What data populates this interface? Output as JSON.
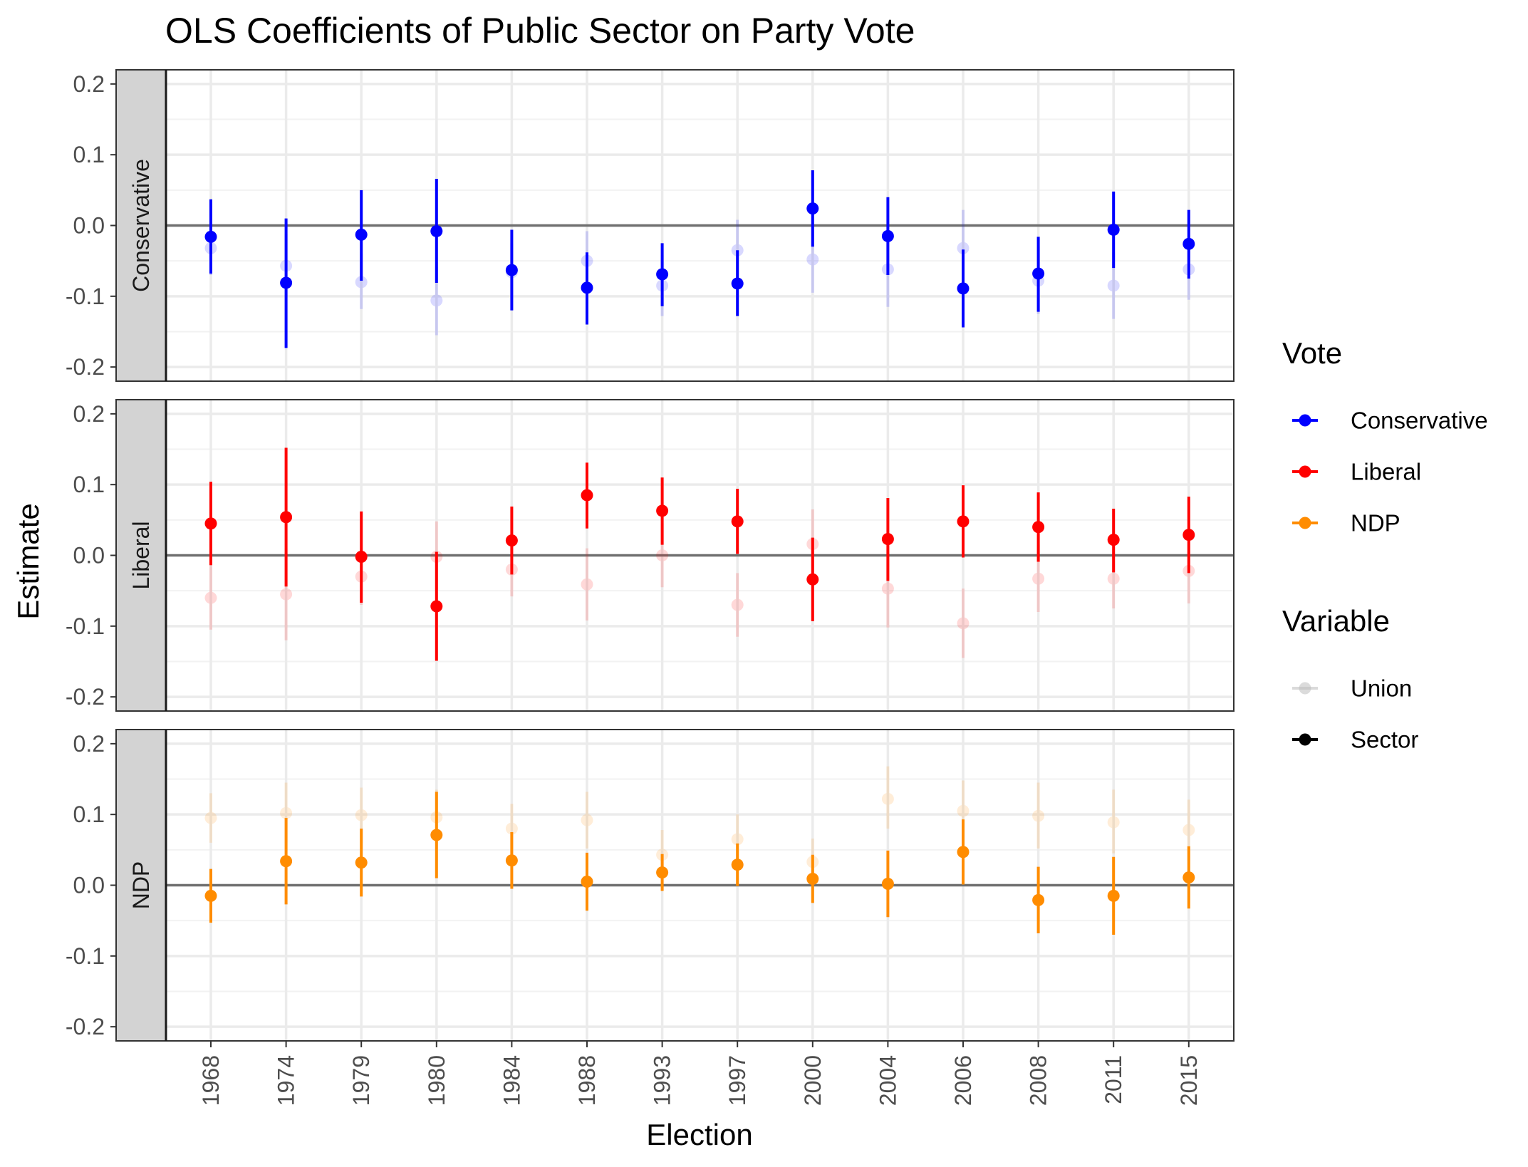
{
  "chart_data": {
    "type": "scatter",
    "title": "OLS Coefficients of Public Sector on Party Vote",
    "xlabel": "Election",
    "ylabel": "Estimate",
    "ylim": [
      -0.22,
      0.22
    ],
    "yticks": [
      -0.2,
      -0.1,
      0.0,
      0.1,
      0.2
    ],
    "ytick_labels": [
      "-0.2",
      "-0.1",
      "0.0",
      "0.1",
      "0.2"
    ],
    "grid": true,
    "reference_line": 0,
    "categories": [
      "1968",
      "1974",
      "1979",
      "1980",
      "1984",
      "1988",
      "1993",
      "1997",
      "2000",
      "2004",
      "2006",
      "2008",
      "2011",
      "2015"
    ],
    "colors": {
      "Conservative": "#0000ff",
      "Liberal": "#ff0000",
      "NDP": "#ff8c00",
      "panel_strip": "#d3d3d3",
      "grid": "#ebebeb",
      "zero_line": "#707070"
    },
    "panels": [
      {
        "name": "Conservative",
        "strip_label": "Conservative",
        "sector": {
          "estimate": [
            -0.016,
            -0.081,
            -0.013,
            -0.008,
            -0.063,
            -0.088,
            -0.069,
            -0.082,
            0.024,
            -0.015,
            -0.089,
            -0.068,
            -0.006,
            -0.026
          ],
          "lower": [
            -0.068,
            -0.173,
            -0.078,
            -0.081,
            -0.12,
            -0.14,
            -0.114,
            -0.128,
            -0.03,
            -0.07,
            -0.144,
            -0.122,
            -0.06,
            -0.075
          ],
          "upper": [
            0.037,
            0.01,
            0.05,
            0.066,
            -0.006,
            -0.038,
            -0.025,
            -0.035,
            0.078,
            0.04,
            -0.034,
            -0.016,
            0.048,
            0.022
          ]
        },
        "union": {
          "estimate": [
            -0.032,
            -0.057,
            -0.08,
            -0.106,
            -0.066,
            -0.05,
            -0.085,
            -0.035,
            -0.048,
            -0.062,
            -0.032,
            -0.078,
            -0.085,
            -0.062
          ],
          "lower": [
            -0.07,
            -0.1,
            -0.118,
            -0.155,
            -0.105,
            -0.09,
            -0.128,
            -0.078,
            -0.095,
            -0.115,
            -0.078,
            -0.125,
            -0.132,
            -0.105
          ],
          "upper": [
            0.005,
            -0.012,
            -0.04,
            -0.058,
            -0.025,
            -0.008,
            -0.042,
            0.008,
            0.0,
            -0.01,
            0.022,
            -0.03,
            -0.038,
            -0.018
          ]
        }
      },
      {
        "name": "Liberal",
        "strip_label": "Liberal",
        "sector": {
          "estimate": [
            0.045,
            0.054,
            -0.002,
            -0.072,
            0.021,
            0.085,
            0.063,
            0.048,
            -0.034,
            0.023,
            0.048,
            0.04,
            0.022,
            0.029
          ],
          "lower": [
            -0.014,
            -0.044,
            -0.067,
            -0.149,
            -0.027,
            0.038,
            0.015,
            0.002,
            -0.093,
            -0.036,
            -0.003,
            -0.009,
            -0.024,
            -0.025
          ],
          "upper": [
            0.104,
            0.152,
            0.062,
            0.005,
            0.069,
            0.131,
            0.11,
            0.094,
            0.025,
            0.081,
            0.099,
            0.089,
            0.066,
            0.083
          ]
        },
        "union": {
          "estimate": [
            -0.06,
            -0.055,
            -0.03,
            -0.002,
            -0.02,
            -0.041,
            0.0,
            -0.07,
            0.016,
            -0.047,
            -0.096,
            -0.033,
            -0.033,
            -0.022
          ],
          "lower": [
            -0.105,
            -0.12,
            -0.07,
            -0.048,
            -0.058,
            -0.092,
            -0.045,
            -0.115,
            -0.03,
            -0.102,
            -0.145,
            -0.08,
            -0.075,
            -0.068
          ],
          "upper": [
            -0.015,
            0.01,
            0.01,
            0.048,
            0.02,
            0.01,
            0.045,
            -0.025,
            0.065,
            0.008,
            -0.047,
            0.015,
            0.01,
            0.022
          ]
        }
      },
      {
        "name": "NDP",
        "strip_label": "NDP",
        "sector": {
          "estimate": [
            -0.015,
            0.034,
            0.032,
            0.071,
            0.035,
            0.005,
            0.018,
            0.029,
            0.009,
            0.002,
            0.047,
            -0.021,
            -0.015,
            0.011
          ],
          "lower": [
            -0.053,
            -0.027,
            -0.016,
            0.01,
            -0.005,
            -0.036,
            -0.008,
            -0.001,
            -0.025,
            -0.045,
            0.001,
            -0.068,
            -0.07,
            -0.033
          ],
          "upper": [
            0.023,
            0.095,
            0.08,
            0.132,
            0.075,
            0.046,
            0.044,
            0.059,
            0.043,
            0.049,
            0.093,
            0.026,
            0.04,
            0.055
          ]
        },
        "union": {
          "estimate": [
            0.095,
            0.102,
            0.099,
            0.096,
            0.08,
            0.092,
            0.043,
            0.065,
            0.033,
            0.122,
            0.105,
            0.098,
            0.089,
            0.078
          ],
          "lower": [
            0.06,
            0.06,
            0.06,
            0.058,
            0.045,
            0.052,
            0.01,
            0.03,
            0.0,
            0.08,
            0.065,
            0.052,
            0.045,
            0.035
          ],
          "upper": [
            0.13,
            0.145,
            0.138,
            0.135,
            0.115,
            0.132,
            0.078,
            0.1,
            0.066,
            0.168,
            0.148,
            0.145,
            0.135,
            0.121
          ]
        }
      }
    ],
    "legends": [
      {
        "title": "Vote",
        "entries": [
          {
            "label": "Conservative",
            "color": "#0000ff"
          },
          {
            "label": "Liberal",
            "color": "#ff0000"
          },
          {
            "label": "NDP",
            "color": "#ff8c00"
          }
        ]
      },
      {
        "title": "Variable",
        "entries": [
          {
            "label": "Union",
            "color": "#bdbdbd"
          },
          {
            "label": "Sector",
            "color": "#000000"
          }
        ]
      }
    ],
    "legend_position": "right"
  }
}
